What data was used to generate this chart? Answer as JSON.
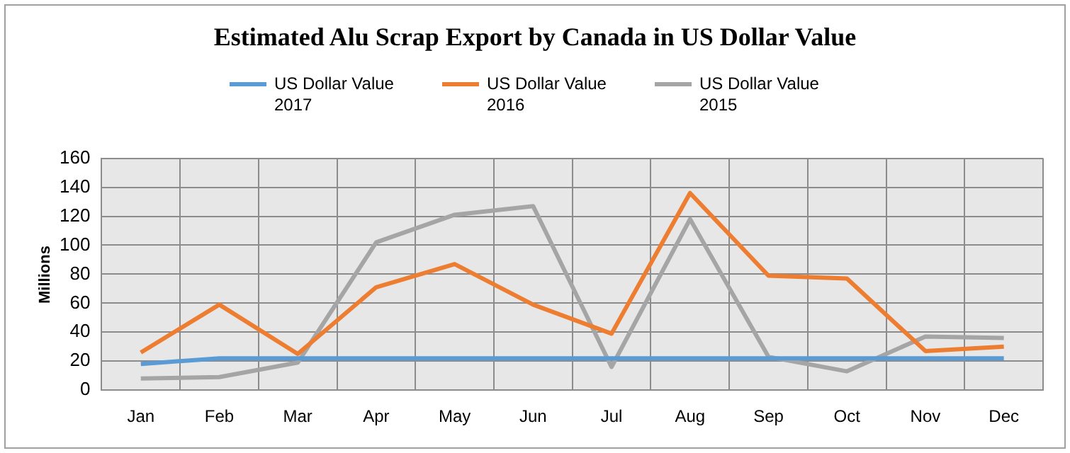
{
  "chart_data": {
    "type": "line",
    "title": "Estimated Alu Scrap Export by Canada in US Dollar Value",
    "ylabel": "Millions",
    "categories": [
      "Jan",
      "Feb",
      "Mar",
      "Apr",
      "May",
      "Jun",
      "Jul",
      "Aug",
      "Sep",
      "Oct",
      "Nov",
      "Dec"
    ],
    "series": [
      {
        "name": "US Dollar Value 2017",
        "color": "#5b9bd5",
        "values": [
          18,
          22,
          22,
          22,
          22,
          22,
          22,
          22,
          22,
          22,
          22,
          22
        ]
      },
      {
        "name": "US Dollar Value 2016",
        "color": "#ed7d31",
        "values": [
          26,
          59,
          25,
          71,
          87,
          59,
          39,
          136,
          79,
          77,
          27,
          30
        ]
      },
      {
        "name": "US Dollar Value 2015",
        "color": "#a5a5a5",
        "values": [
          8,
          9,
          19,
          102,
          121,
          127,
          16,
          118,
          23,
          13,
          37,
          36
        ]
      }
    ],
    "ylim": [
      0,
      160
    ],
    "yticks": [
      0,
      20,
      40,
      60,
      80,
      100,
      120,
      140,
      160
    ],
    "grid": true,
    "legend": "top",
    "marker": "none",
    "line_style": "solid"
  }
}
